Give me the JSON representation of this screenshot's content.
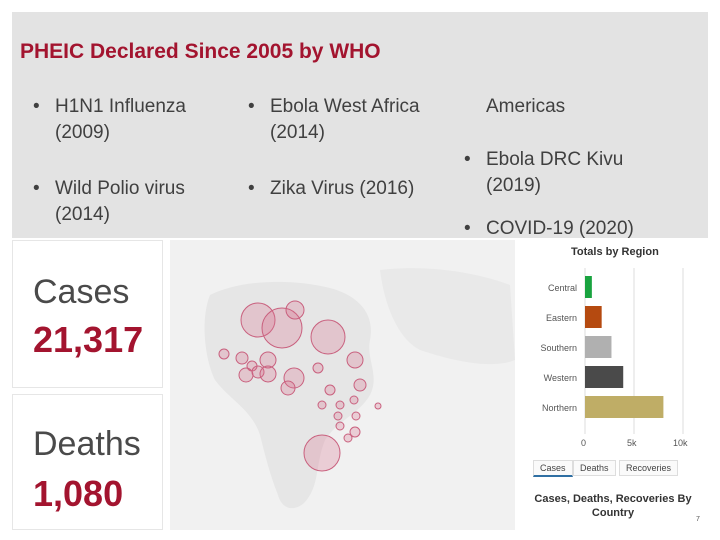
{
  "slide": {
    "title": "PHEIC Declared Since 2005 by WHO",
    "bullets": [
      "H1N1 Influenza (2009)",
      "Wild Polio virus (2014)",
      "Ebola West Africa (2014)",
      "Zika Virus (2016)",
      "Americas",
      "Ebola DRC Kivu (2019)",
      "COVID-19 (2020)"
    ],
    "page_number": "7"
  },
  "dashboard": {
    "cases_label": "Cases",
    "cases_value": "21,317",
    "deaths_label": "Deaths",
    "deaths_value": "1,080",
    "panel_title": "Totals by Region",
    "panel_subtitle": "Cases, Deaths, Recoveries By Country",
    "tabs": [
      "Cases",
      "Deaths",
      "Recoveries"
    ],
    "active_tab": "Cases",
    "colors": {
      "Central": "#19a33f",
      "Eastern": "#b54a10",
      "Southern": "#b0b0b0",
      "Western": "#4a4a4a",
      "Northern": "#bfad66"
    }
  },
  "chart_data": {
    "type": "bar",
    "orientation": "horizontal",
    "title": "Totals by Region",
    "categories": [
      "Central",
      "Eastern",
      "Southern",
      "Western",
      "Northern"
    ],
    "values": [
      700,
      1700,
      2700,
      3900,
      8000
    ],
    "xticks": [
      "0",
      "5k",
      "10k"
    ],
    "xlim": [
      0,
      10000
    ],
    "grid": true
  }
}
